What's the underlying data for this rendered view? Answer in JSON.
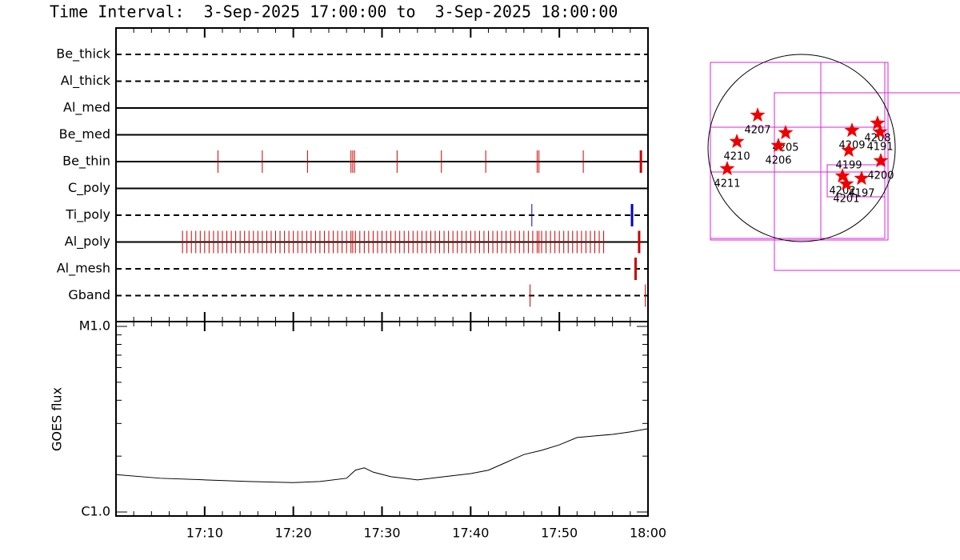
{
  "title": "Time Interval:  3-Sep-2025 17:00:00 to  3-Sep-2025 18:00:00",
  "timeline": {
    "xlim": [
      0,
      60
    ],
    "rows": [
      {
        "name": "Be_thick",
        "style": "dashed",
        "color": "#cc0000",
        "events": [],
        "thick_events": []
      },
      {
        "name": "Al_thick",
        "style": "dashed",
        "color": "#cc0000",
        "events": [],
        "thick_events": []
      },
      {
        "name": "Al_med",
        "style": "solid",
        "color": "#cc0000",
        "events": [],
        "thick_events": []
      },
      {
        "name": "Be_med",
        "style": "solid",
        "color": "#cc0000",
        "events": [],
        "thick_events": []
      },
      {
        "name": "Be_thin",
        "style": "solid",
        "color": "#cc0000",
        "events": [
          11.5,
          16.5,
          21.6,
          26.5,
          26.7,
          26.9,
          31.7,
          36.7,
          41.7,
          47.5,
          47.7,
          52.7
        ],
        "thick_events": [
          59.2
        ]
      },
      {
        "name": "C_poly",
        "style": "solid",
        "color": "#cc0000",
        "events": [],
        "thick_events": []
      },
      {
        "name": "Ti_poly",
        "style": "dashed",
        "color": "#0000cc",
        "events": [
          46.9
        ],
        "thick_events": [
          58.2
        ]
      },
      {
        "name": "Al_poly",
        "style": "solid",
        "color": "#cc0000",
        "events": [
          7.5,
          8,
          8.5,
          9,
          9.5,
          10,
          10.5,
          11,
          11.5,
          12,
          12.5,
          13,
          13.5,
          14,
          14.5,
          15,
          15.5,
          16,
          16.5,
          17,
          17.5,
          18,
          18.5,
          19,
          19.5,
          20,
          20.5,
          21,
          21.5,
          22,
          22.5,
          23,
          23.5,
          24,
          24.5,
          25,
          25.5,
          26,
          26.5,
          26.7,
          27,
          27.5,
          28,
          28.5,
          29,
          29.5,
          30,
          30.5,
          31,
          31.5,
          32,
          32.5,
          33,
          33.5,
          34,
          34.5,
          35,
          35.5,
          36,
          36.5,
          37,
          37.5,
          38,
          38.5,
          39,
          39.5,
          40,
          40.5,
          41,
          41.5,
          42,
          42.5,
          43,
          43.5,
          44,
          44.5,
          45,
          45.5,
          46,
          46.5,
          47,
          47.5,
          47.7,
          48,
          48.5,
          49,
          49.5,
          50,
          50.5,
          51,
          51.5,
          52,
          52.5,
          53,
          53.5,
          54,
          54.5,
          55
        ],
        "thick_events": [
          59.0
        ]
      },
      {
        "name": "Al_mesh",
        "style": "dashed",
        "color": "#cc0000",
        "events": [],
        "thick_events": [
          58.6
        ]
      },
      {
        "name": "Gband",
        "style": "dashed",
        "color": "#cc0000",
        "events": [
          46.7,
          59.7
        ],
        "thick_events": []
      }
    ]
  },
  "goes": {
    "ylabel": "GOES flux",
    "log_scale": true,
    "xlim": [
      0,
      60
    ],
    "ylim": [
      1e-06,
      1e-05
    ],
    "yticks": [
      {
        "value": 1e-06,
        "label": "C1.0"
      },
      {
        "value": 1e-05,
        "label": "M1.0"
      }
    ],
    "xticks": [
      {
        "value": 10,
        "label": "17:10"
      },
      {
        "value": 20,
        "label": "17:20"
      },
      {
        "value": 30,
        "label": "17:30"
      },
      {
        "value": 40,
        "label": "17:40"
      },
      {
        "value": 50,
        "label": "17:50"
      },
      {
        "value": 60,
        "label": "18:00"
      }
    ],
    "x": [
      0,
      5,
      10,
      15,
      20,
      23,
      26,
      27,
      28,
      29,
      31,
      34,
      37,
      40,
      42,
      44,
      46,
      48,
      50,
      52,
      54,
      56,
      58,
      60
    ],
    "values": [
      1.59e-06,
      1.52e-06,
      1.49e-06,
      1.46e-06,
      1.44e-06,
      1.46e-06,
      1.52e-06,
      1.68e-06,
      1.73e-06,
      1.64e-06,
      1.55e-06,
      1.49e-06,
      1.55e-06,
      1.61e-06,
      1.68e-06,
      1.85e-06,
      2.04e-06,
      2.15e-06,
      2.3e-06,
      2.52e-06,
      2.57e-06,
      2.62e-06,
      2.7e-06,
      2.81e-06
    ],
    "color": "#000000"
  },
  "sun_map": {
    "radius": 960,
    "star_color": "#ee0000",
    "regions": [
      {
        "label": "4207",
        "x": -451,
        "y": 336
      },
      {
        "label": "4210",
        "x": -664,
        "y": 66
      },
      {
        "label": "4211",
        "x": -763,
        "y": -213
      },
      {
        "label": "4205",
        "x": -164,
        "y": 156
      },
      {
        "label": "4206",
        "x": -238,
        "y": 25
      },
      {
        "label": "4209",
        "x": 517,
        "y": 180
      },
      {
        "label": "4199",
        "x": 484,
        "y": -25
      },
      {
        "label": "4208",
        "x": 779,
        "y": 254
      },
      {
        "label": "4191",
        "x": 804,
        "y": 164
      },
      {
        "label": "4200",
        "x": 812,
        "y": -131
      },
      {
        "label": "4202",
        "x": 419,
        "y": -287
      },
      {
        "label": "4197",
        "x": 615,
        "y": -312
      },
      {
        "label": "4201",
        "x": 459,
        "y": -369
      }
    ]
  }
}
